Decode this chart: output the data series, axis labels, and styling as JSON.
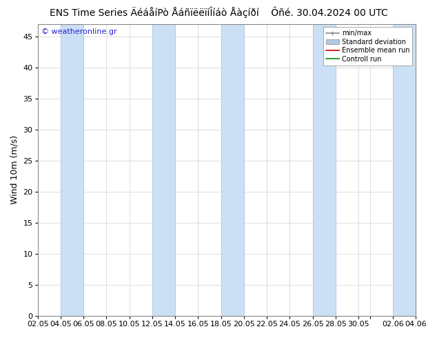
{
  "title": "ENS Time Series ÄéáåíPò ÅáñïëëïíÎíáò Åàçíðí    Ôñé. 30.04.2024 00 UTC",
  "watermark": "© weatheronline.gr",
  "ylabel": "Wind 10m (m/s)",
  "ylim": [
    0,
    47
  ],
  "yticks": [
    0,
    5,
    10,
    15,
    20,
    25,
    30,
    35,
    40,
    45
  ],
  "xtick_labels": [
    "02.05",
    "04.05",
    "06.05",
    "08.05",
    "10.05",
    "12.05",
    "14.05",
    "16.05",
    "18.05",
    "20.05",
    "22.05",
    "24.05",
    "26.05",
    "28.05",
    "30.05",
    "",
    "02.06",
    "04.06"
  ],
  "xtick_positions": [
    0,
    2,
    4,
    6,
    8,
    10,
    12,
    14,
    16,
    18,
    20,
    22,
    24,
    26,
    28,
    29,
    31,
    33
  ],
  "xlim": [
    0,
    33
  ],
  "bg_color": "#ffffff",
  "band_color": "#cce0f5",
  "band_edge_color": "#a8c8e8",
  "band_ranges": [
    [
      2,
      4
    ],
    [
      10,
      12
    ],
    [
      16,
      18
    ],
    [
      24,
      26
    ],
    [
      31,
      33
    ]
  ],
  "grid_color": "#d0d0d0",
  "title_fontsize": 10,
  "ylabel_fontsize": 9,
  "tick_fontsize": 8,
  "watermark_color": "#2222cc",
  "legend_items": [
    "min/max",
    "Standard deviation",
    "Ensemble mean run",
    "Controll run"
  ],
  "legend_line_colors": [
    "#888888",
    "#b0c8e0",
    "#cc0000",
    "#008800"
  ],
  "fig_width": 6.34,
  "fig_height": 4.9,
  "dpi": 100
}
